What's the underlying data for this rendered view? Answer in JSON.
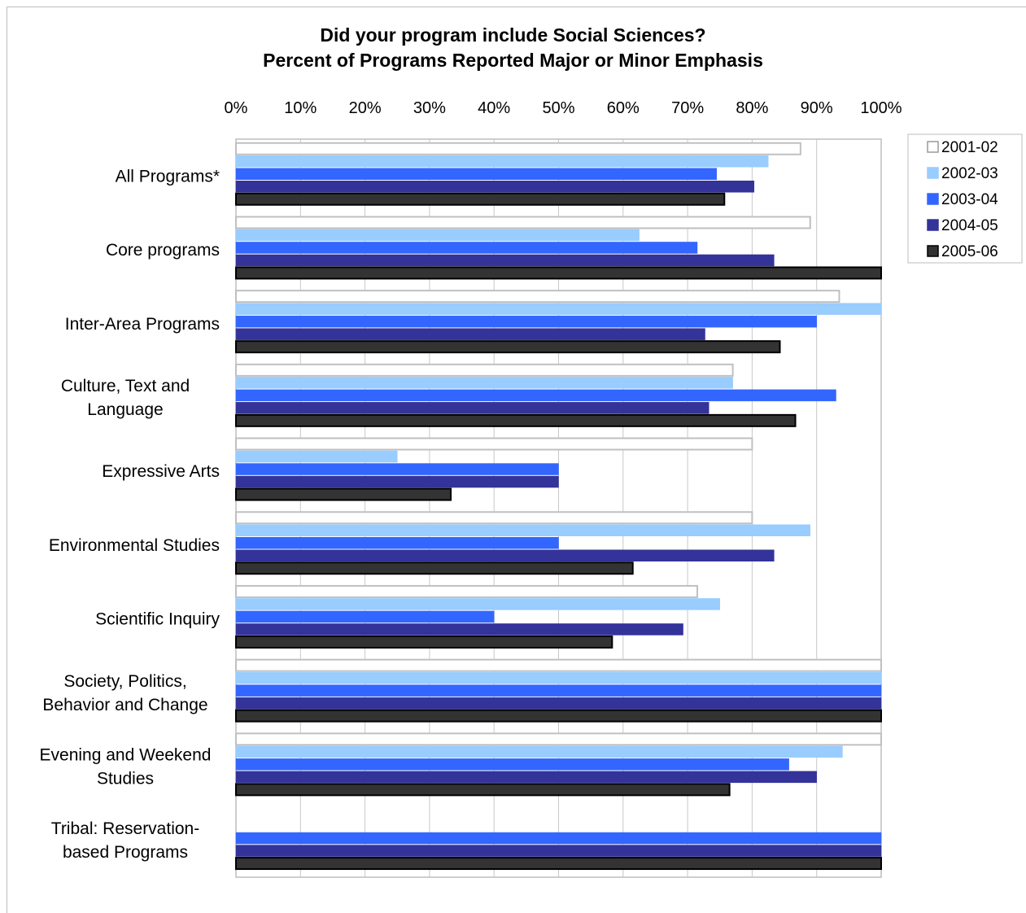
{
  "chart_data": {
    "type": "bar",
    "orientation": "horizontal",
    "title": "Did your program include Social Sciences?",
    "subtitle": "Percent of Programs Reported Major or Minor Emphasis",
    "x_ticks": [
      "0%",
      "10%",
      "20%",
      "30%",
      "40%",
      "50%",
      "60%",
      "70%",
      "80%",
      "90%",
      "100%"
    ],
    "xlim": [
      0,
      100
    ],
    "grid": true,
    "legend_position": "top-right",
    "categories": [
      [
        "All Programs*"
      ],
      [
        "Core programs"
      ],
      [
        "Inter-Area Programs"
      ],
      [
        "Culture, Text and",
        "Language"
      ],
      [
        "Expressive Arts"
      ],
      [
        "Environmental Studies"
      ],
      [
        "Scientific Inquiry"
      ],
      [
        "Society, Politics,",
        "Behavior and Change"
      ],
      [
        "Evening and Weekend",
        "Studies"
      ],
      [
        "Tribal: Reservation-",
        "based Programs"
      ]
    ],
    "series": [
      {
        "name": "2001-02",
        "color": "#ffffff",
        "stroke": "#c0c0c0",
        "values": [
          87.5,
          89,
          93.5,
          77,
          80,
          80,
          71.5,
          100,
          100,
          0
        ]
      },
      {
        "name": "2002-03",
        "color": "#99ccff",
        "stroke": "#99ccff",
        "values": [
          82.5,
          62.5,
          100,
          77,
          25,
          89,
          75,
          100,
          94,
          0
        ]
      },
      {
        "name": "2003-04",
        "color": "#3366ff",
        "stroke": "#3366ff",
        "values": [
          74.5,
          71.5,
          90,
          93,
          50,
          50,
          40,
          100,
          85.7,
          100
        ]
      },
      {
        "name": "2004-05",
        "color": "#333399",
        "stroke": "#333399",
        "values": [
          80.3,
          83.4,
          72.7,
          73.3,
          50,
          83.4,
          69.3,
          100,
          90,
          100
        ]
      },
      {
        "name": "2005-06",
        "color": "#333333",
        "stroke": "#000000",
        "values": [
          75.7,
          100,
          84.3,
          86.7,
          33.3,
          61.5,
          58.3,
          100,
          76.5,
          100
        ]
      }
    ]
  }
}
